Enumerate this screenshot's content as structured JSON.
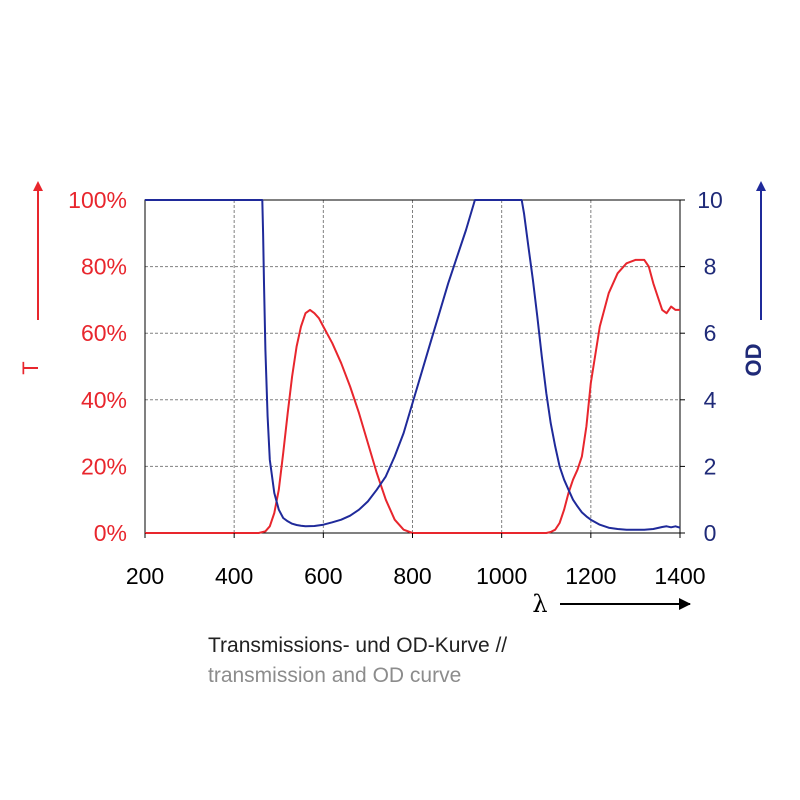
{
  "colors": {
    "transmission": "#e8262d",
    "od": "#1f2a9a",
    "grid": "#808080",
    "text": "#222222",
    "subtitle": "#8c8c8c"
  },
  "chart_data": {
    "type": "line",
    "xlabel": "λ",
    "ylabel": "T",
    "y2label": "OD",
    "xlim": [
      200,
      1400
    ],
    "ylim": [
      0,
      100
    ],
    "y2lim": [
      0,
      10
    ],
    "x_ticks": [
      "200",
      "400",
      "600",
      "800",
      "1000",
      "1200",
      "1400"
    ],
    "y_ticks": [
      "0%",
      "20%",
      "40%",
      "60%",
      "80%",
      "100%"
    ],
    "y2_ticks": [
      "0",
      "2",
      "4",
      "6",
      "8",
      "10"
    ],
    "grid": true,
    "series": [
      {
        "name": "T",
        "axis": "left",
        "x": [
          200,
          455,
          470,
          480,
          490,
          500,
          510,
          520,
          530,
          540,
          550,
          560,
          570,
          580,
          590,
          600,
          620,
          640,
          660,
          680,
          700,
          720,
          740,
          760,
          780,
          800,
          900,
          1000,
          1080,
          1100,
          1110,
          1120,
          1130,
          1140,
          1150,
          1160,
          1170,
          1180,
          1190,
          1200,
          1220,
          1240,
          1260,
          1280,
          1300,
          1320,
          1330,
          1340,
          1350,
          1360,
          1370,
          1380,
          1390,
          1400
        ],
        "values": [
          0,
          0,
          0.5,
          2,
          6,
          13,
          24,
          36,
          47,
          56,
          62,
          66,
          67,
          66,
          64.5,
          62,
          57,
          51,
          44,
          36,
          27,
          18,
          10,
          4,
          1,
          0,
          0,
          0,
          0,
          0,
          0.3,
          1,
          3,
          7,
          12,
          16,
          19,
          23,
          32,
          45,
          62,
          72,
          78,
          81,
          82,
          82,
          80,
          75,
          71,
          67,
          66,
          68,
          67,
          67
        ]
      },
      {
        "name": "OD",
        "axis": "right",
        "x": [
          200,
          463,
          465,
          467,
          470,
          475,
          480,
          490,
          500,
          510,
          520,
          530,
          540,
          550,
          560,
          580,
          600,
          620,
          640,
          660,
          680,
          700,
          720,
          740,
          760,
          780,
          800,
          820,
          840,
          860,
          880,
          900,
          920,
          940,
          960,
          980,
          1000,
          1020,
          1045,
          1050,
          1060,
          1070,
          1080,
          1090,
          1100,
          1110,
          1120,
          1130,
          1140,
          1150,
          1160,
          1170,
          1180,
          1190,
          1200,
          1220,
          1240,
          1260,
          1280,
          1300,
          1320,
          1340,
          1360,
          1370,
          1380,
          1390,
          1400
        ],
        "values": [
          10,
          10,
          9,
          7.5,
          5.5,
          3.5,
          2.2,
          1.2,
          0.7,
          0.45,
          0.35,
          0.28,
          0.24,
          0.22,
          0.2,
          0.21,
          0.25,
          0.32,
          0.4,
          0.52,
          0.7,
          0.95,
          1.3,
          1.7,
          2.3,
          3.0,
          3.9,
          4.8,
          5.7,
          6.6,
          7.5,
          8.3,
          9.1,
          10,
          10,
          10,
          10,
          10,
          10,
          9.6,
          8.6,
          7.6,
          6.5,
          5.3,
          4.2,
          3.3,
          2.6,
          2.0,
          1.6,
          1.3,
          1.0,
          0.8,
          0.62,
          0.5,
          0.4,
          0.25,
          0.16,
          0.12,
          0.1,
          0.1,
          0.1,
          0.12,
          0.18,
          0.2,
          0.17,
          0.2,
          0.16
        ]
      }
    ]
  },
  "caption": {
    "line1": "Transmissions- und OD-Kurve //",
    "line2": "transmission and OD curve"
  }
}
